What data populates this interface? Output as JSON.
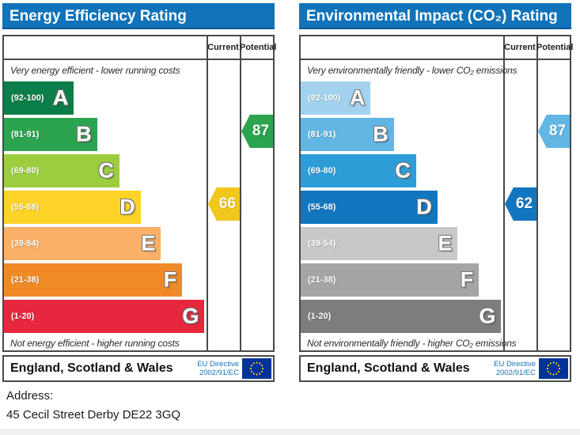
{
  "header_color": "#1173b9",
  "address": {
    "label": "Address:",
    "value": "45 Cecil Street Derby DE22 3GQ"
  },
  "eu_flag": {
    "background": "#003399",
    "star_color": "#ffcc00"
  },
  "panels": [
    {
      "title": "Energy Efficiency Rating",
      "columns": {
        "current": "Current",
        "potential": "Potential"
      },
      "top_note": "Very energy efficient - lower running costs",
      "bottom_note": "Not energy efficient - higher running costs",
      "bands": [
        {
          "range": "(92-100)",
          "letter": "A",
          "color": "#0b7d48",
          "width_pct": 34.5
        },
        {
          "range": "(81-91)",
          "letter": "B",
          "color": "#2ca44f",
          "width_pct": 46
        },
        {
          "range": "(69-80)",
          "letter": "C",
          "color": "#9bcd3e",
          "width_pct": 57
        },
        {
          "range": "(55-68)",
          "letter": "D",
          "color": "#fed328",
          "width_pct": 67.5
        },
        {
          "range": "(39-54)",
          "letter": "E",
          "color": "#fab066",
          "width_pct": 77.5
        },
        {
          "range": "(21-38)",
          "letter": "F",
          "color": "#ef8a26",
          "width_pct": 88
        },
        {
          "range": "(1-20)",
          "letter": "G",
          "color": "#e7273e",
          "width_pct": 99
        }
      ],
      "current": {
        "label": "66",
        "color": "#f1c71c",
        "band_index": 3
      },
      "potential": {
        "label": "87",
        "color": "#2ca44f",
        "band_index": 1
      },
      "footer": {
        "region": "England, Scotland & Wales",
        "directive_line1": "EU Directive",
        "directive_line2": "2002/91/EC"
      }
    },
    {
      "title": "Environmental Impact (CO₂) Rating",
      "columns": {
        "current": "Current",
        "potential": "Potential"
      },
      "top_note": "Very environmentally friendly - lower CO₂ emissions",
      "bottom_note": "Not environmentally friendly - higher CO₂ emissions",
      "bands": [
        {
          "range": "(92-100)",
          "letter": "A",
          "color": "#a2d2ee",
          "width_pct": 34.5
        },
        {
          "range": "(81-91)",
          "letter": "B",
          "color": "#61b6e4",
          "width_pct": 46
        },
        {
          "range": "(69-80)",
          "letter": "C",
          "color": "#2c9dd6",
          "width_pct": 57
        },
        {
          "range": "(55-68)",
          "letter": "D",
          "color": "#1276bf",
          "width_pct": 67.5
        },
        {
          "range": "(39-54)",
          "letter": "E",
          "color": "#c8c8c8",
          "width_pct": 77.5
        },
        {
          "range": "(21-38)",
          "letter": "F",
          "color": "#a5a5a5",
          "width_pct": 88
        },
        {
          "range": "(1-20)",
          "letter": "G",
          "color": "#7d7d7d",
          "width_pct": 99
        }
      ],
      "current": {
        "label": "62",
        "color": "#1276bf",
        "band_index": 3
      },
      "potential": {
        "label": "87",
        "color": "#61b6e4",
        "band_index": 1
      },
      "footer": {
        "region": "England, Scotland & Wales",
        "directive_line1": "EU Directive",
        "directive_line2": "2002/91/EC"
      }
    }
  ],
  "chart_data": [
    {
      "type": "bar",
      "title": "Energy Efficiency Rating",
      "categories": [
        "A",
        "B",
        "C",
        "D",
        "E",
        "F",
        "G"
      ],
      "band_ranges": [
        "92-100",
        "81-91",
        "69-80",
        "55-68",
        "39-54",
        "21-38",
        "1-20"
      ],
      "bar_lengths_pct": [
        34.5,
        46,
        57,
        67.5,
        77.5,
        88,
        99
      ],
      "current": 66,
      "current_band": "D",
      "potential": 87,
      "potential_band": "B",
      "columns": [
        "Current",
        "Potential"
      ],
      "top_annotation": "Very energy efficient - lower running costs",
      "bottom_annotation": "Not energy efficient - higher running costs",
      "region": "England, Scotland & Wales"
    },
    {
      "type": "bar",
      "title": "Environmental Impact (CO₂) Rating",
      "categories": [
        "A",
        "B",
        "C",
        "D",
        "E",
        "F",
        "G"
      ],
      "band_ranges": [
        "92-100",
        "81-91",
        "69-80",
        "55-68",
        "39-54",
        "21-38",
        "1-20"
      ],
      "bar_lengths_pct": [
        34.5,
        46,
        57,
        67.5,
        77.5,
        88,
        99
      ],
      "current": 62,
      "current_band": "D",
      "potential": 87,
      "potential_band": "B",
      "columns": [
        "Current",
        "Potential"
      ],
      "top_annotation": "Very environmentally friendly - lower CO₂ emissions",
      "bottom_annotation": "Not environmentally friendly - higher CO₂ emissions",
      "region": "England, Scotland & Wales"
    }
  ]
}
